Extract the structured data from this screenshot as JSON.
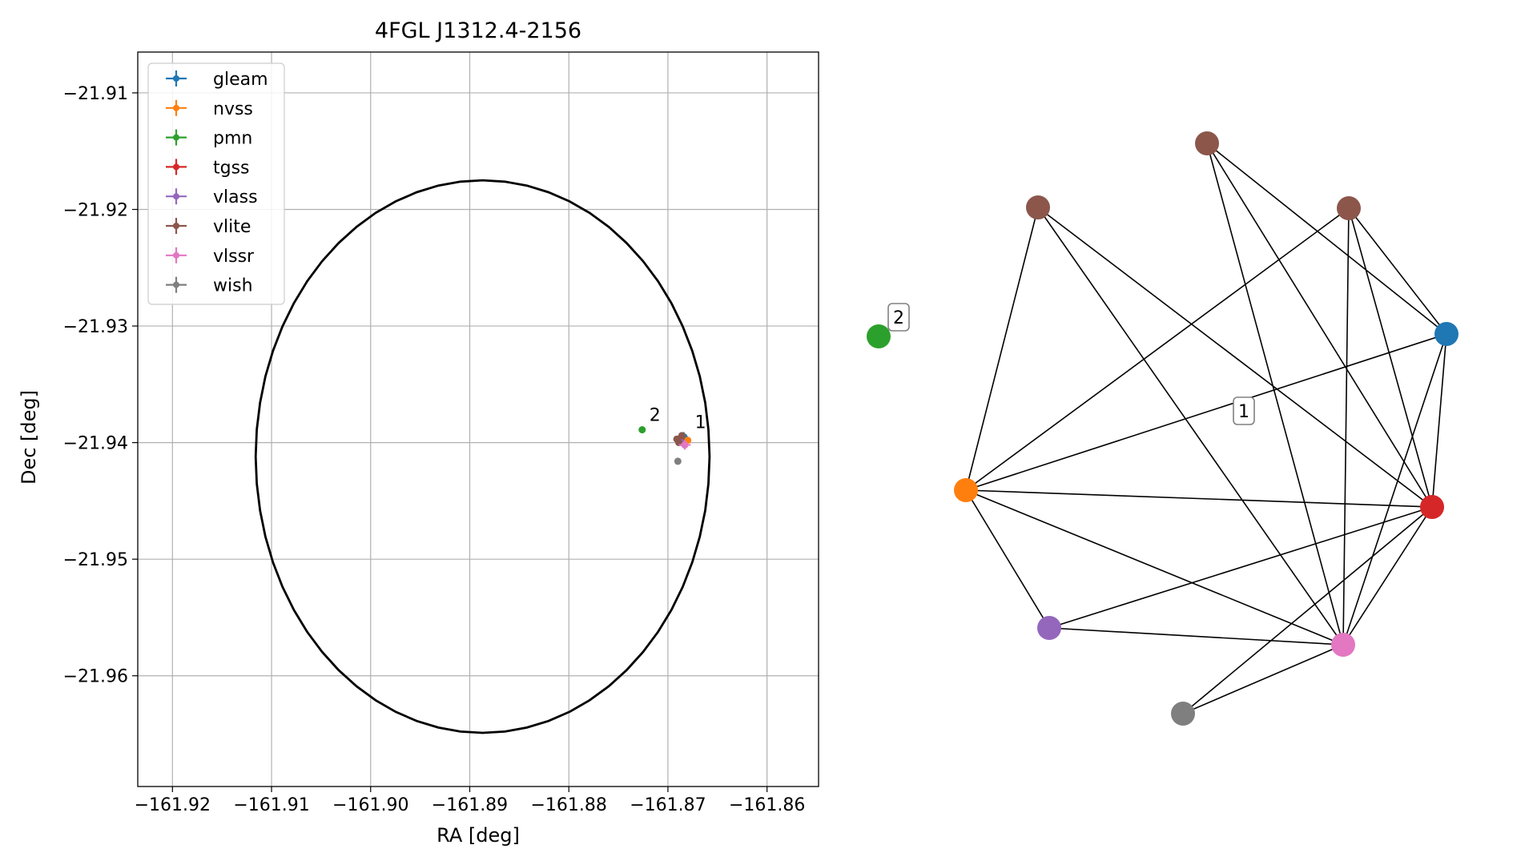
{
  "chart_data": [
    {
      "type": "scatter",
      "title": "4FGL J1312.4-2156",
      "xlabel": "RA [deg]",
      "ylabel": "Dec [deg]",
      "xlim": [
        -161.9235,
        -161.8548
      ],
      "ylim": [
        -21.9695,
        -21.9065
      ],
      "x_inverted": true,
      "xticks": [
        -161.92,
        -161.91,
        -161.9,
        -161.89,
        -161.88,
        -161.87,
        -161.86
      ],
      "xtick_labels": [
        "−161.92",
        "−161.91",
        "−161.90",
        "−161.89",
        "−161.88",
        "−161.87",
        "−161.86"
      ],
      "yticks": [
        -21.91,
        -21.92,
        -21.93,
        -21.94,
        -21.95,
        -21.96
      ],
      "ytick_labels": [
        "−21.91",
        "−21.92",
        "−21.93",
        "−21.94",
        "−21.95",
        "−21.96"
      ],
      "grid": true,
      "legend_position": "top-left",
      "ellipse": {
        "center": [
          -161.8887,
          -21.9412
        ],
        "half_width_ra": 0.0229,
        "half_height_dec": 0.0237,
        "color": "#000000"
      },
      "series": [
        {
          "name": "gleam",
          "color": "#1f77b4",
          "points": [
            {
              "x": -161.8684,
              "y": -21.9395,
              "xerr": 0.0004,
              "yerr": 0.0004
            }
          ]
        },
        {
          "name": "nvss",
          "color": "#ff7f0e",
          "points": [
            {
              "x": -161.868,
              "y": -21.9398,
              "xerr": 0.0002,
              "yerr": 0.0002
            }
          ]
        },
        {
          "name": "pmn",
          "color": "#2ca02c",
          "points": [
            {
              "x": -161.8726,
              "y": -21.9389,
              "xerr": 0.0001,
              "yerr": 0.0003
            }
          ]
        },
        {
          "name": "tgss",
          "color": "#d62728",
          "points": [
            {
              "x": -161.8687,
              "y": -21.9398,
              "xerr": 0.0002,
              "yerr": 0.0002
            }
          ]
        },
        {
          "name": "vlass",
          "color": "#9467bd",
          "points": [
            {
              "x": -161.8686,
              "y": -21.94,
              "xerr": 0.0001,
              "yerr": 0.0001
            }
          ]
        },
        {
          "name": "vlite",
          "color": "#8c564b",
          "points": [
            {
              "x": -161.8686,
              "y": -21.9394,
              "xerr": 0.0001,
              "yerr": 0.0001
            },
            {
              "x": -161.8691,
              "y": -21.9397,
              "xerr": 0.0001,
              "yerr": 0.0001
            },
            {
              "x": -161.8689,
              "y": -21.94,
              "xerr": 0.0001,
              "yerr": 0.0001
            }
          ]
        },
        {
          "name": "vlssr",
          "color": "#e377c2",
          "points": [
            {
              "x": -161.8683,
              "y": -21.9402,
              "xerr": 0.0006,
              "yerr": 0.0004
            }
          ]
        },
        {
          "name": "wish",
          "color": "#7f7f7f",
          "points": [
            {
              "x": -161.869,
              "y": -21.9416,
              "xerr": 0.0001,
              "yerr": 0.0002
            }
          ]
        }
      ],
      "annotations": [
        {
          "text": "2",
          "x": -161.8726,
          "y": -21.9389
        },
        {
          "text": "1",
          "x": -161.868,
          "y": -21.9395
        }
      ]
    },
    {
      "type": "network",
      "nodes": [
        {
          "id": "gleam",
          "color": "#1f77b4"
        },
        {
          "id": "nvss",
          "color": "#ff7f0e"
        },
        {
          "id": "pmn",
          "color": "#2ca02c"
        },
        {
          "id": "tgss",
          "color": "#d62728"
        },
        {
          "id": "vlass",
          "color": "#9467bd"
        },
        {
          "id": "vlite_a",
          "color": "#8c564b"
        },
        {
          "id": "vlite_b",
          "color": "#8c564b"
        },
        {
          "id": "vlite_c",
          "color": "#8c564b"
        },
        {
          "id": "vlssr",
          "color": "#e377c2"
        },
        {
          "id": "wish",
          "color": "#7f7f7f"
        }
      ],
      "edges": [
        [
          "vlite_a",
          "gleam"
        ],
        [
          "vlite_a",
          "tgss"
        ],
        [
          "vlite_a",
          "vlssr"
        ],
        [
          "vlite_b",
          "nvss"
        ],
        [
          "vlite_b",
          "tgss"
        ],
        [
          "vlite_b",
          "vlssr"
        ],
        [
          "vlite_c",
          "nvss"
        ],
        [
          "vlite_c",
          "gleam"
        ],
        [
          "vlite_c",
          "tgss"
        ],
        [
          "vlite_c",
          "vlssr"
        ],
        [
          "gleam",
          "nvss"
        ],
        [
          "gleam",
          "tgss"
        ],
        [
          "gleam",
          "vlssr"
        ],
        [
          "nvss",
          "tgss"
        ],
        [
          "nvss",
          "vlass"
        ],
        [
          "nvss",
          "vlssr"
        ],
        [
          "vlass",
          "tgss"
        ],
        [
          "vlass",
          "vlssr"
        ],
        [
          "tgss",
          "vlssr"
        ],
        [
          "tgss",
          "wish"
        ],
        [
          "wish",
          "vlssr"
        ]
      ],
      "cluster_labels": [
        {
          "text": "2",
          "near": "pmn"
        },
        {
          "text": "1",
          "near": "center"
        }
      ]
    }
  ]
}
